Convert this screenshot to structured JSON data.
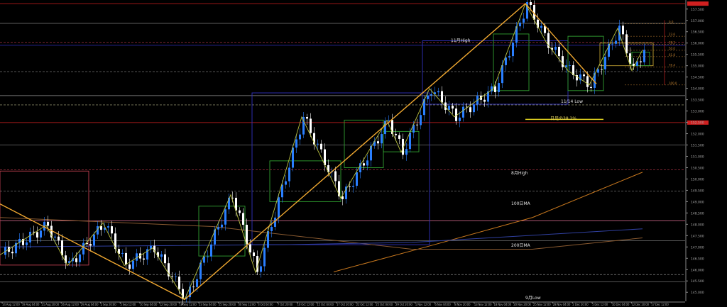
{
  "chart_data": {
    "type": "candlestick",
    "ylim": [
      144.6,
      157.9
    ],
    "bars_total": 193,
    "y_ticks": [
      145.0,
      145.5,
      146.0,
      146.5,
      147.0,
      147.5,
      148.0,
      148.5,
      149.0,
      149.5,
      150.0,
      150.5,
      151.0,
      151.5,
      152.0,
      152.5,
      153.0,
      153.5,
      154.0,
      154.5,
      155.0,
      155.5,
      156.0,
      156.5,
      157.0,
      157.5
    ],
    "x_tick_labels": [
      "14 Aug 12:00",
      "19 Aug 04:00",
      "21 Aug 20:00",
      "26 Aug 12:00",
      "29 Aug 04:00",
      "2 Sep 20:00",
      "5 Sep 12:00",
      "10 Sep 04:00",
      "12 Sep 20:00",
      "18 Sep 12:00",
      "23 Sep 04:00",
      "25 Sep 20:00",
      "30 Sep 12:00",
      "3 Oct 04:00",
      "7 Oct 20:00",
      "10 Oct 12:00",
      "15 Oct 04:00",
      "17 Oct 20:00",
      "22 Oct 12:00",
      "25 Oct 04:00",
      "29 Oct 20:00",
      "1 Nov 12:00",
      "6 Nov 04:00",
      "8 Nov 20:00",
      "13 Nov 12:00",
      "18 Nov 04:00",
      "20 Nov 20:00",
      "25 Nov 12:00",
      "28 Nov 04:00",
      "2 Dec 20:00",
      "5 Dec 12:00",
      "10 Dec 04:00",
      "12 Dec 20:00",
      "17 Dec 12:00"
    ],
    "swings": [
      [
        0,
        146.65
      ],
      [
        13,
        147.96
      ],
      [
        19,
        146.18
      ],
      [
        29,
        148.06
      ],
      [
        35,
        146.18
      ],
      [
        43,
        146.96
      ],
      [
        52,
        144.68
      ],
      [
        65,
        149.3
      ],
      [
        72,
        145.87
      ],
      [
        85,
        152.74
      ],
      [
        96,
        149.15
      ],
      [
        109,
        152.59
      ],
      [
        113,
        151.18
      ],
      [
        121,
        153.99
      ],
      [
        128,
        152.74
      ],
      [
        139,
        153.99
      ],
      [
        148,
        157.74
      ],
      [
        154,
        156.0
      ],
      [
        160,
        154.78
      ],
      [
        166,
        154.15
      ],
      [
        174,
        156.65
      ],
      [
        178,
        154.78
      ],
      [
        181,
        155.7
      ]
    ],
    "trend_lines": [
      {
        "color": "#f0a830",
        "points": [
          [
            0,
            148.9
          ],
          [
            52,
            144.68
          ],
          [
            148,
            157.74
          ],
          [
            168,
            154.2
          ]
        ]
      }
    ],
    "moving_averages": [
      {
        "name": "100日MA",
        "color": "#c8781e",
        "points": [
          [
            94,
            145.9
          ],
          [
            120,
            147.0
          ],
          [
            150,
            148.3
          ],
          [
            181,
            150.3
          ]
        ]
      },
      {
        "name": "200日MA",
        "color": "#8a5a30",
        "points": [
          [
            0,
            148.3
          ],
          [
            60,
            147.9
          ],
          [
            116,
            146.9
          ],
          [
            150,
            146.9
          ],
          [
            181,
            147.4
          ]
        ]
      },
      {
        "name": "",
        "color": "#3040a0",
        "points": [
          [
            0,
            147.0
          ],
          [
            80,
            147.1
          ],
          [
            116,
            147.2
          ],
          [
            181,
            147.8
          ]
        ]
      }
    ],
    "levels": [
      {
        "price": 157.74,
        "color": "#d02020",
        "style": "solid"
      },
      {
        "price": 156.87,
        "color": "#707070",
        "style": "solid"
      },
      {
        "price": 156.03,
        "color": "#a03040",
        "style": "dash"
      },
      {
        "price": 155.9,
        "color": "#3030c0",
        "style": "solid"
      },
      {
        "price": 154.74,
        "color": "#707070",
        "style": "dash"
      },
      {
        "price": 153.68,
        "color": "#909090",
        "style": "solid"
      },
      {
        "price": 153.27,
        "color": "#808060",
        "style": "dash"
      },
      {
        "price": 152.49,
        "color": "#d02020",
        "style": "solid"
      },
      {
        "price": 151.5,
        "color": "#707070",
        "style": "solid"
      },
      {
        "price": 150.4,
        "color": "#a03040",
        "style": "dash"
      },
      {
        "price": 149.47,
        "color": "#707070",
        "style": "dash"
      },
      {
        "price": 148.15,
        "color": "#c06080",
        "style": "solid"
      },
      {
        "price": 147.28,
        "color": "#707070",
        "style": "solid"
      },
      {
        "price": 145.78,
        "color": "#707070",
        "style": "dash"
      },
      {
        "price": 145.46,
        "color": "#707070",
        "style": "solid"
      }
    ],
    "boxes": [
      {
        "b0": 0,
        "b1": 25,
        "p0": 150.35,
        "p1": 146.2,
        "color": "#c04050"
      },
      {
        "b0": 71,
        "b1": 121,
        "p0": 153.8,
        "p1": 147.1,
        "color": "#3030c0"
      },
      {
        "b0": 119,
        "b1": 160,
        "p0": 156.1,
        "p1": 153.3,
        "color": "#3030c0"
      },
      {
        "b0": 56,
        "b1": 69,
        "p0": 148.8,
        "p1": 146.6,
        "color": "#30a030"
      },
      {
        "b0": 76,
        "b1": 96,
        "p0": 150.8,
        "p1": 149.0,
        "color": "#30a030"
      },
      {
        "b0": 97,
        "b1": 108,
        "p0": 152.6,
        "p1": 150.5,
        "color": "#30a030"
      },
      {
        "b0": 108,
        "b1": 118,
        "p0": 152.1,
        "p1": 151.2,
        "color": "#30a030"
      },
      {
        "b0": 139,
        "b1": 149,
        "p0": 156.4,
        "p1": 153.9,
        "color": "#30a030"
      },
      {
        "b0": 160,
        "b1": 170,
        "p0": 156.3,
        "p1": 153.9,
        "color": "#30a030"
      },
      {
        "b0": 169,
        "b1": 184,
        "p0": 156.0,
        "p1": 155.0,
        "color": "#c0a030"
      },
      {
        "b0": 178,
        "b1": 183,
        "p0": 155.6,
        "p1": 155.0,
        "color": "#30a030"
      }
    ],
    "fibo": {
      "color": "#c08030",
      "levels": [
        "0.0",
        "23.6",
        "38.2",
        "50.0",
        "61.8",
        "76.4",
        "100.0"
      ],
      "prices": [
        156.85,
        156.3,
        155.95,
        155.68,
        155.4,
        154.95,
        154.15
      ]
    },
    "annotations": [
      {
        "text": "11月High",
        "bar": 127,
        "price": 156.15,
        "color": "#e0e0e0"
      },
      {
        "text": "11/14 Low",
        "bar": 158,
        "price": 153.4,
        "color": "#e0e0e0"
      },
      {
        "text": "日足の38.2%",
        "bar": 155,
        "price": 152.72,
        "color": "#e0d060"
      },
      {
        "text": "8月High",
        "bar": 144,
        "price": 150.3,
        "color": "#e0e0e0"
      },
      {
        "text": "100日MA",
        "bar": 144,
        "price": 148.95,
        "color": "#e0e0e0"
      },
      {
        "text": "200日MA",
        "bar": 144,
        "price": 147.1,
        "color": "#e0e0e0"
      },
      {
        "text": "9月Low",
        "bar": 148,
        "price": 144.78,
        "color": "#e0e0e0"
      }
    ],
    "fib_line": {
      "b0": 148,
      "b1": 170,
      "price": 152.63,
      "color": "#e0d020"
    },
    "candle_colors": {
      "up": "#2a7fff",
      "down": "#ffffff",
      "bg": "#000000",
      "grid": "#555555"
    },
    "price_tags": [
      {
        "price": 157.74,
        "color": "#d02020"
      },
      {
        "price": 152.49,
        "color": "#d02020"
      }
    ]
  }
}
